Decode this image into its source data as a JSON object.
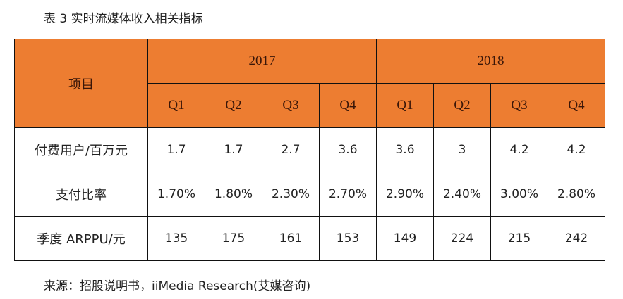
{
  "title": "表 3 实时流媒体收入相关指标",
  "table": {
    "row_header": "项目",
    "years": [
      "2017",
      "2018"
    ],
    "quarters": [
      "Q1",
      "Q2",
      "Q3",
      "Q4",
      "Q1",
      "Q2",
      "Q3",
      "Q4"
    ],
    "rows": [
      {
        "label": "付费用户/百万元",
        "values": [
          "1.7",
          "1.7",
          "2.7",
          "3.6",
          "3.6",
          "3",
          "4.2",
          "4.2"
        ]
      },
      {
        "label": "支付比率",
        "values": [
          "1.70%",
          "1.80%",
          "2.30%",
          "2.70%",
          "2.90%",
          "2.40%",
          "3.00%",
          "2.80%"
        ]
      },
      {
        "label": "季度 ARPPU/元",
        "values": [
          "135",
          "175",
          "161",
          "153",
          "149",
          "224",
          "215",
          "242"
        ]
      }
    ]
  },
  "source": "来源：招股说明书，iiMedia Research(艾媒咨询)",
  "colors": {
    "header_bg": "#ED7D31"
  }
}
